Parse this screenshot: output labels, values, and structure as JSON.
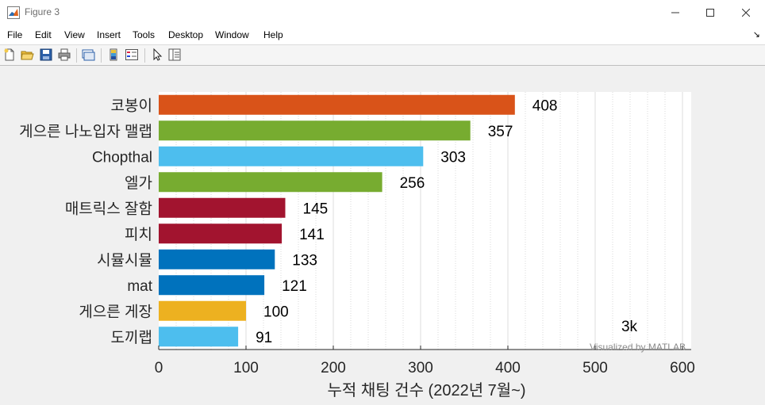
{
  "window": {
    "title": "Figure 3"
  },
  "menu": [
    "File",
    "Edit",
    "View",
    "Insert",
    "Tools",
    "Desktop",
    "Window",
    "Help"
  ],
  "toolbar": {
    "icons": [
      "new-figure-icon",
      "open-file-icon",
      "save-icon",
      "print-icon",
      "link-plot-icon",
      "colorbar-icon",
      "legend-icon",
      "pointer-icon",
      "property-inspector-icon"
    ]
  },
  "chart_data": {
    "type": "bar",
    "orientation": "horizontal",
    "categories": [
      "코봉이",
      "게으른 나노입자 맬랩",
      "Chopthal",
      "엘가",
      "매트릭스 잘함",
      "피치",
      "시뮬시뮬",
      "mat",
      "게으른 게장",
      "도끼랩"
    ],
    "values": [
      408,
      357,
      303,
      256,
      145,
      141,
      133,
      121,
      100,
      91
    ],
    "value_labels": [
      "408",
      "357",
      "303",
      "256",
      "145",
      "141",
      "133",
      "121",
      "100",
      "91"
    ],
    "colors": [
      "#d95319",
      "#77ac30",
      "#4dbeee",
      "#77ac30",
      "#a2142f",
      "#a2142f",
      "#0072bd",
      "#0072bd",
      "#edb120",
      "#4dbeee"
    ],
    "xlabel": "누적 채팅 건수 (2022년 7월~)",
    "ylabel": "",
    "xlim": [
      0,
      610
    ],
    "xticks": [
      0,
      100,
      200,
      300,
      400,
      500,
      600
    ],
    "xtick_labels": [
      "0",
      "100",
      "200",
      "300",
      "400",
      "500",
      "600"
    ],
    "minor_grid_step": 20,
    "grid": "vertical",
    "annotations": [
      "3k",
      "Visualized by MATLAB"
    ]
  }
}
